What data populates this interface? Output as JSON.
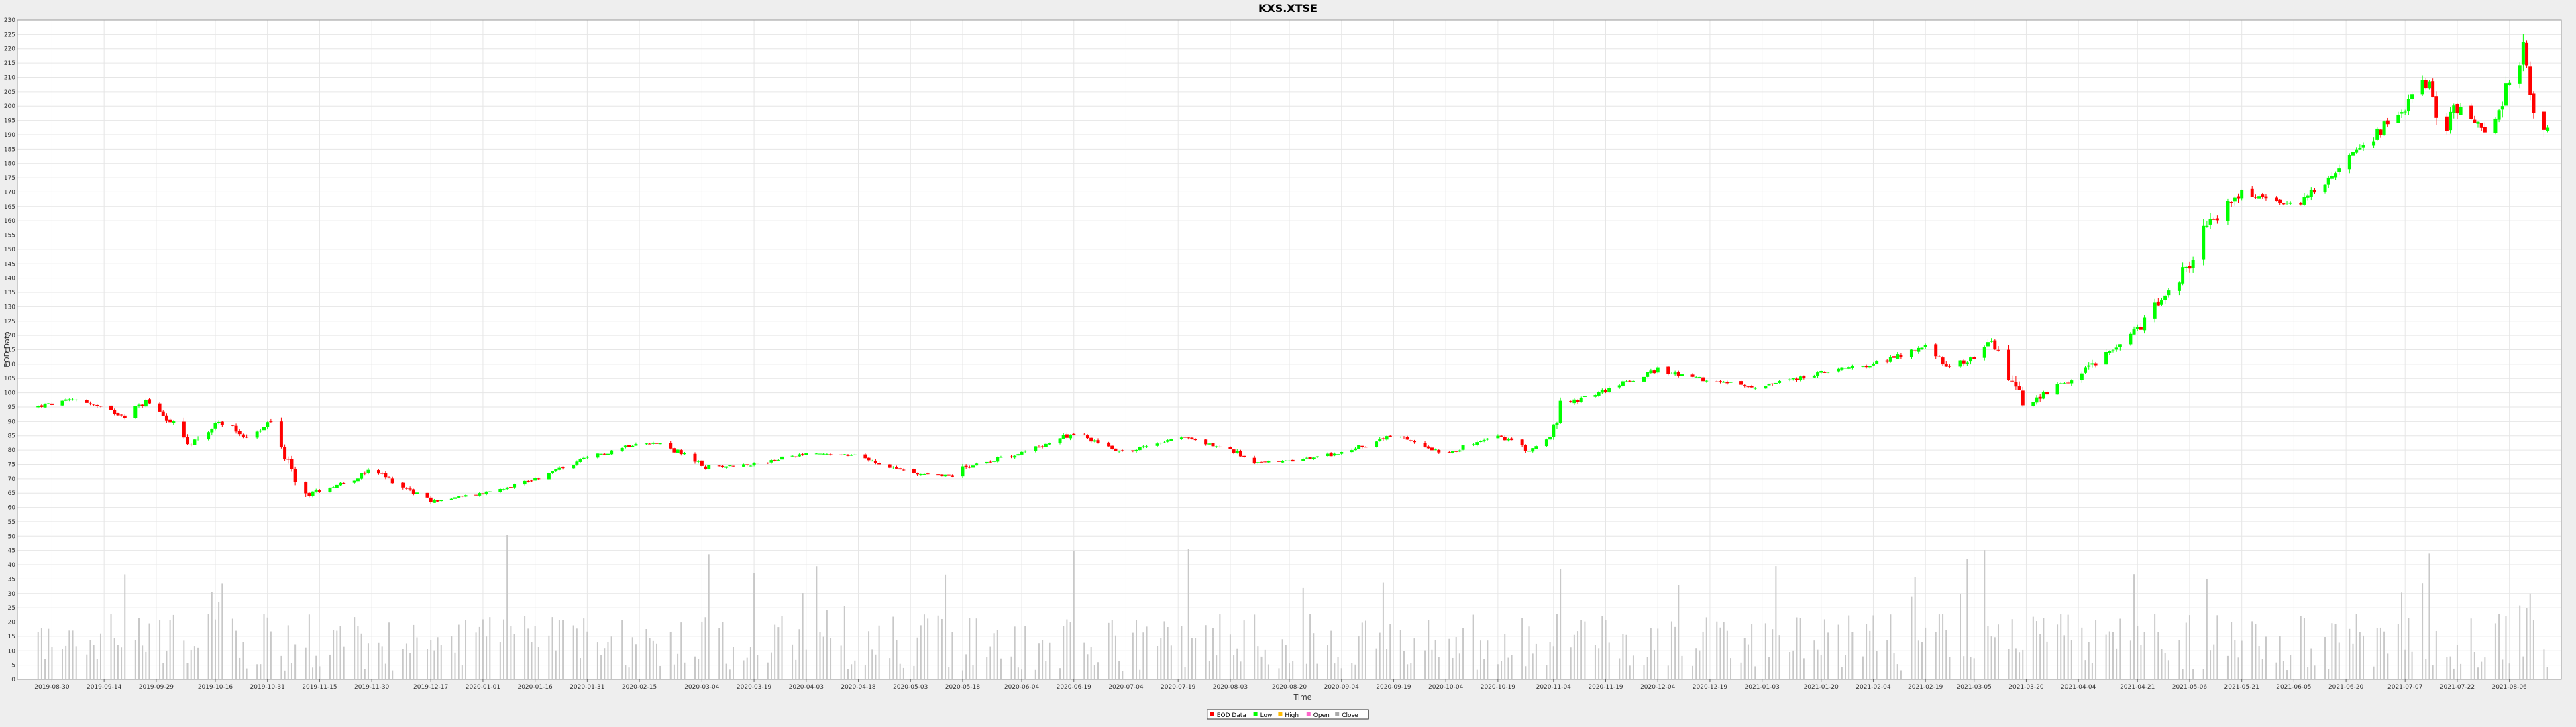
{
  "chart_data": {
    "type": "candlestick",
    "title": "KXS.XTSE",
    "xlabel": "Time",
    "ylabel": "EOD Data",
    "ylim": [
      0,
      230
    ],
    "y_tick_step": 5,
    "grid": true,
    "legend_position": "bottom-center",
    "colors": {
      "up": "#00ff00",
      "down": "#ff0000",
      "volume": "#c8c8c8",
      "grid": "#e6e6e6"
    },
    "x_tick_labels": [
      "2019-08-30",
      "2019-09-14",
      "2019-09-29",
      "2019-10-16",
      "2019-10-31",
      "2019-11-15",
      "2019-11-30",
      "2019-12-17",
      "2020-01-01",
      "2020-01-16",
      "2020-01-31",
      "2020-02-15",
      "2020-03-04",
      "2020-03-19",
      "2020-04-03",
      "2020-04-18",
      "2020-05-03",
      "2020-05-18",
      "2020-06-04",
      "2020-06-19",
      "2020-07-04",
      "2020-07-19",
      "2020-08-03",
      "2020-08-20",
      "2020-09-04",
      "2020-09-19",
      "2020-10-04",
      "2020-10-19",
      "2020-11-04",
      "2020-11-19",
      "2020-12-04",
      "2020-12-19",
      "2021-01-03",
      "2021-01-20",
      "2021-02-04",
      "2021-02-19",
      "2021-03-05",
      "2021-03-20",
      "2021-04-04",
      "2021-04-21",
      "2021-05-06",
      "2021-05-21",
      "2021-06-05",
      "2021-06-20",
      "2021-07-07",
      "2021-07-22",
      "2021-08-06"
    ],
    "legend": [
      {
        "name": "EOD Data",
        "color": "#ff0000"
      },
      {
        "name": "Low",
        "color": "#00ff00"
      },
      {
        "name": "High",
        "color": "#ffbb00"
      },
      {
        "name": "Open",
        "color": "#ff66cc"
      },
      {
        "name": "Close",
        "color": "#aaaaaa"
      }
    ],
    "close_anchors": [
      [
        "2019-08-25",
        95
      ],
      [
        "2019-08-30",
        96
      ],
      [
        "2019-09-07",
        98
      ],
      [
        "2019-09-12",
        95
      ],
      [
        "2019-09-20",
        92
      ],
      [
        "2019-09-26",
        97
      ],
      [
        "2019-10-01",
        93
      ],
      [
        "2019-10-08",
        82
      ],
      [
        "2019-10-18",
        90
      ],
      [
        "2019-10-26",
        84
      ],
      [
        "2019-11-01",
        90
      ],
      [
        "2019-11-06",
        75
      ],
      [
        "2019-11-10",
        64
      ],
      [
        "2019-11-25",
        70
      ],
      [
        "2019-11-30",
        73
      ],
      [
        "2019-12-08",
        68
      ],
      [
        "2019-12-17",
        62
      ],
      [
        "2020-01-01",
        65
      ],
      [
        "2020-01-16",
        70
      ],
      [
        "2020-01-31",
        77
      ],
      [
        "2020-02-15",
        83
      ],
      [
        "2020-02-22",
        82
      ],
      [
        "2020-03-05",
        74
      ],
      [
        "2020-03-19",
        75
      ],
      [
        "2020-04-03",
        79
      ],
      [
        "2020-04-18",
        78
      ],
      [
        "2020-05-03",
        72
      ],
      [
        "2020-05-15",
        71
      ],
      [
        "2020-05-18",
        74
      ],
      [
        "2020-06-04",
        79
      ],
      [
        "2020-06-19",
        86
      ],
      [
        "2020-07-04",
        79
      ],
      [
        "2020-07-19",
        85
      ],
      [
        "2020-08-03",
        80
      ],
      [
        "2020-08-10",
        76
      ],
      [
        "2020-08-20",
        76
      ],
      [
        "2020-09-04",
        79
      ],
      [
        "2020-09-19",
        85
      ],
      [
        "2020-10-04",
        79
      ],
      [
        "2020-10-19",
        85
      ],
      [
        "2020-10-28",
        80
      ],
      [
        "2020-11-03",
        84
      ],
      [
        "2020-11-06",
        95
      ],
      [
        "2020-11-19",
        101
      ],
      [
        "2020-12-04",
        108
      ],
      [
        "2020-12-19",
        104
      ],
      [
        "2021-01-03",
        102
      ],
      [
        "2021-01-20",
        107
      ],
      [
        "2021-02-04",
        110
      ],
      [
        "2021-02-19",
        116
      ],
      [
        "2021-02-26",
        108
      ],
      [
        "2021-03-05",
        113
      ],
      [
        "2021-03-10",
        118
      ],
      [
        "2021-03-20",
        95
      ],
      [
        "2021-03-25",
        100
      ],
      [
        "2021-04-04",
        106
      ],
      [
        "2021-04-21",
        122
      ],
      [
        "2021-05-06",
        145
      ],
      [
        "2021-05-11",
        158
      ],
      [
        "2021-05-21",
        170
      ],
      [
        "2021-06-05",
        165
      ],
      [
        "2021-06-20",
        180
      ],
      [
        "2021-07-07",
        200
      ],
      [
        "2021-07-14",
        210
      ],
      [
        "2021-07-17",
        188
      ],
      [
        "2021-07-22",
        200
      ],
      [
        "2021-07-31",
        191
      ],
      [
        "2021-08-06",
        208
      ],
      [
        "2021-08-10",
        220
      ],
      [
        "2021-08-14",
        195
      ],
      [
        "2021-08-17",
        193
      ]
    ],
    "volume_range": [
      0,
      65
    ]
  }
}
